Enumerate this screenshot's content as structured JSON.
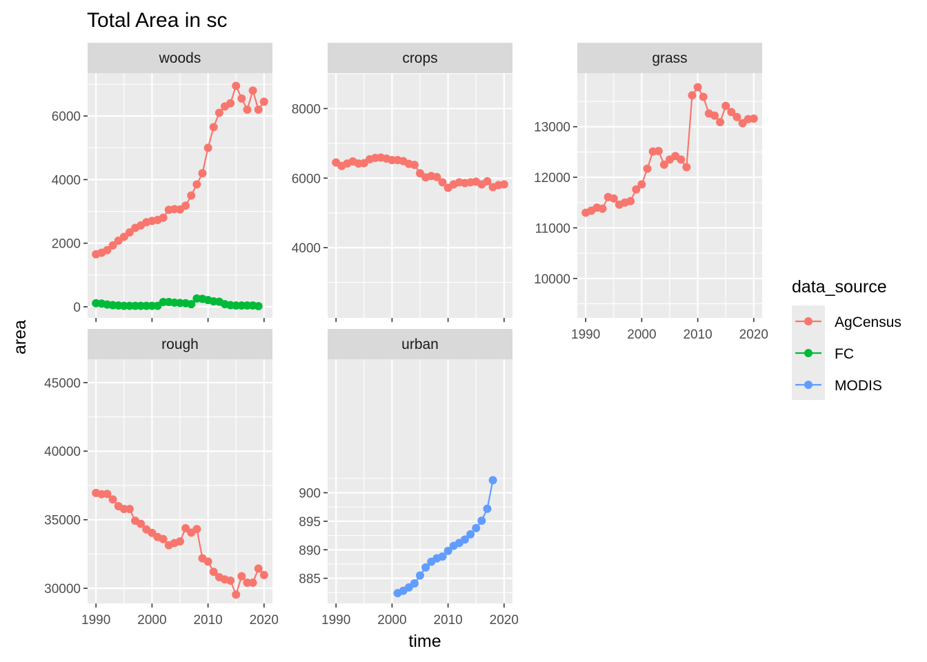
{
  "chart_data": {
    "type": "line",
    "title": "Total Area in sc",
    "xlabel": "time",
    "ylabel": "area",
    "legend": {
      "title": "data_source",
      "position": "right",
      "entries": [
        {
          "name": "AgCensus",
          "color": "#F8766D"
        },
        {
          "name": "FC",
          "color": "#00BA38"
        },
        {
          "name": "MODIS",
          "color": "#619CFF"
        }
      ]
    },
    "xlim": [
      1988.5,
      2021.5
    ],
    "xticks": [
      1990,
      2000,
      2010,
      2020
    ],
    "panels": [
      {
        "name": "woods",
        "ylim": [
          -350,
          7350
        ],
        "yticks": [
          0,
          2000,
          4000,
          6000
        ],
        "ytick_labels": [
          "0",
          "2000",
          "4000",
          "6000"
        ],
        "series": [
          {
            "source": "AgCensus",
            "x": [
              1990,
              1991,
              1992,
              1993,
              1994,
              1995,
              1996,
              1997,
              1998,
              1999,
              2000,
              2001,
              2002,
              2003,
              2004,
              2005,
              2006,
              2007,
              2008,
              2009,
              2010,
              2011,
              2012,
              2013,
              2014,
              2015,
              2016,
              2017,
              2018,
              2019,
              2020
            ],
            "y": [
              1650,
              1700,
              1780,
              1930,
              2080,
              2200,
              2340,
              2480,
              2560,
              2660,
              2700,
              2730,
              2800,
              3050,
              3070,
              3060,
              3180,
              3500,
              3850,
              4200,
              5000,
              5650,
              6100,
              6300,
              6400,
              6950,
              6550,
              6200,
              6800,
              6200,
              6450
            ]
          },
          {
            "source": "FC",
            "x": [
              1990,
              1991,
              1992,
              1993,
              1994,
              1995,
              1996,
              1997,
              1998,
              1999,
              2000,
              2001,
              2002,
              2003,
              2004,
              2005,
              2006,
              2007,
              2008,
              2009,
              2010,
              2011,
              2012,
              2013,
              2014,
              2015,
              2016,
              2017,
              2018,
              2019
            ],
            "y": [
              110,
              100,
              70,
              50,
              40,
              30,
              30,
              30,
              30,
              30,
              30,
              30,
              150,
              150,
              130,
              120,
              110,
              80,
              260,
              250,
              210,
              170,
              160,
              80,
              50,
              40,
              40,
              40,
              40,
              20
            ]
          }
        ]
      },
      {
        "name": "crops",
        "ylim": [
          1980,
          9020
        ],
        "yticks": [
          4000,
          6000,
          8000
        ],
        "ytick_labels": [
          "4000",
          "6000",
          "8000"
        ],
        "series": [
          {
            "source": "AgCensus",
            "x": [
              1990,
              1991,
              1992,
              1993,
              1994,
              1995,
              1996,
              1997,
              1998,
              1999,
              2000,
              2001,
              2002,
              2003,
              2004,
              2005,
              2006,
              2007,
              2008,
              2009,
              2010,
              2011,
              2012,
              2013,
              2014,
              2015,
              2016,
              2017,
              2018,
              2019,
              2020
            ],
            "y": [
              6450,
              6350,
              6420,
              6480,
              6420,
              6430,
              6540,
              6580,
              6590,
              6560,
              6520,
              6520,
              6490,
              6410,
              6380,
              6140,
              6020,
              6060,
              6030,
              5880,
              5720,
              5820,
              5880,
              5860,
              5880,
              5900,
              5820,
              5910,
              5740,
              5800,
              5820
            ]
          }
        ]
      },
      {
        "name": "grass",
        "ylim": [
          9220,
          14060
        ],
        "yticks": [
          10000,
          11000,
          12000,
          13000
        ],
        "ytick_labels": [
          "10000",
          "11000",
          "12000",
          "13000"
        ],
        "series": [
          {
            "source": "AgCensus",
            "x": [
              1990,
              1991,
              1992,
              1993,
              1994,
              1995,
              1996,
              1997,
              1998,
              1999,
              2000,
              2001,
              2002,
              2003,
              2004,
              2005,
              2006,
              2007,
              2008,
              2009,
              2010,
              2011,
              2012,
              2013,
              2014,
              2015,
              2016,
              2017,
              2018,
              2019,
              2020
            ],
            "y": [
              11300,
              11340,
              11400,
              11380,
              11610,
              11580,
              11460,
              11500,
              11530,
              11760,
              11860,
              12170,
              12510,
              12520,
              12250,
              12350,
              12420,
              12350,
              12200,
              13620,
              13780,
              13590,
              13260,
              13220,
              13090,
              13410,
              13290,
              13190,
              13070,
              13150,
              13160
            ]
          }
        ]
      },
      {
        "name": "rough",
        "ylim": [
          28900,
          46700
        ],
        "yticks": [
          30000,
          35000,
          40000,
          45000
        ],
        "ytick_labels": [
          "30000",
          "35000",
          "40000",
          "45000"
        ],
        "series": [
          {
            "source": "AgCensus",
            "x": [
              1990,
              1991,
              1992,
              1993,
              1994,
              1995,
              1996,
              1997,
              1998,
              1999,
              2000,
              2001,
              2002,
              2003,
              2004,
              2005,
              2006,
              2007,
              2008,
              2009,
              2010,
              2011,
              2012,
              2013,
              2014,
              2015,
              2016,
              2017,
              2018,
              2019,
              2020
            ],
            "y": [
              36950,
              36860,
              36880,
              36480,
              35990,
              35780,
              35780,
              34930,
              34700,
              34290,
              34040,
              33740,
              33590,
              33140,
              33300,
              33420,
              34380,
              34060,
              34320,
              32190,
              31950,
              31200,
              30810,
              30650,
              30560,
              29540,
              30880,
              30410,
              30410,
              31440,
              30970
            ]
          }
        ]
      },
      {
        "name": "urban",
        "ylim": [
          880.6,
          923.4
        ],
        "yticks": [
          885,
          890,
          895,
          900
        ],
        "ytick_labels": [
          "885",
          "890",
          "895",
          "900"
        ],
        "series": [
          {
            "source": "MODIS",
            "x": [
              2001,
              2002,
              2003,
              2004,
              2005,
              2006,
              2007,
              2008,
              2009,
              2010,
              2011,
              2012,
              2013,
              2014,
              2015,
              2016,
              2017,
              2018
            ],
            "y": [
              882.4,
              882.8,
              883.4,
              884.1,
              885.5,
              886.9,
              887.9,
              888.5,
              888.8,
              889.8,
              890.7,
              891.2,
              891.8,
              892.7,
              893.8,
              895.1,
              897.2,
              902.2
            ]
          }
        ]
      }
    ]
  }
}
